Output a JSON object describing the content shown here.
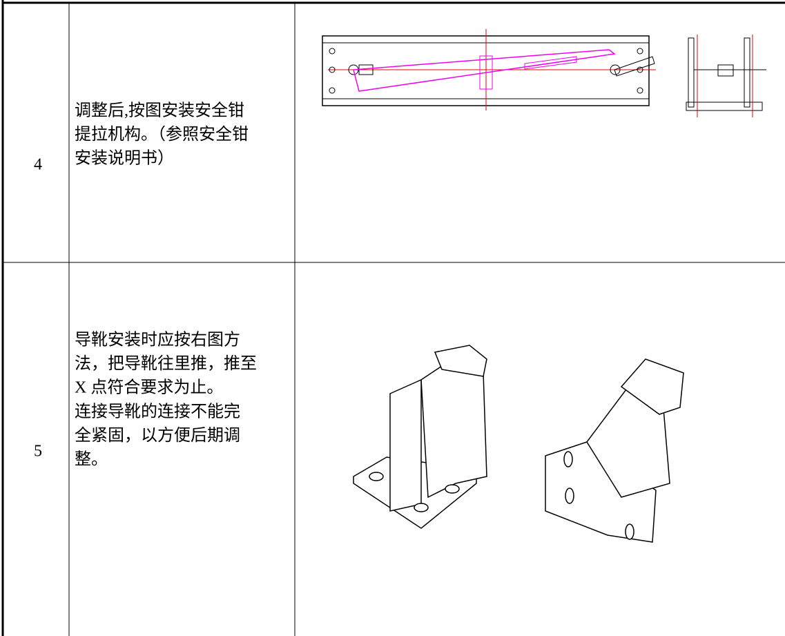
{
  "table": {
    "rows": [
      {
        "number": "4",
        "lines": [
          "调整后,按图安装安全钳",
          "提拉机构。（参照安全钳",
          "安装说明书）"
        ]
      },
      {
        "number": "5",
        "lines": [
          "导靴安装时应按右图方",
          "法，把导靴往里推，推至",
          "X 点符合要求为止。",
          "连接导靴的连接不能完",
          "全紧固，以方便后期调",
          "整。"
        ]
      }
    ]
  }
}
